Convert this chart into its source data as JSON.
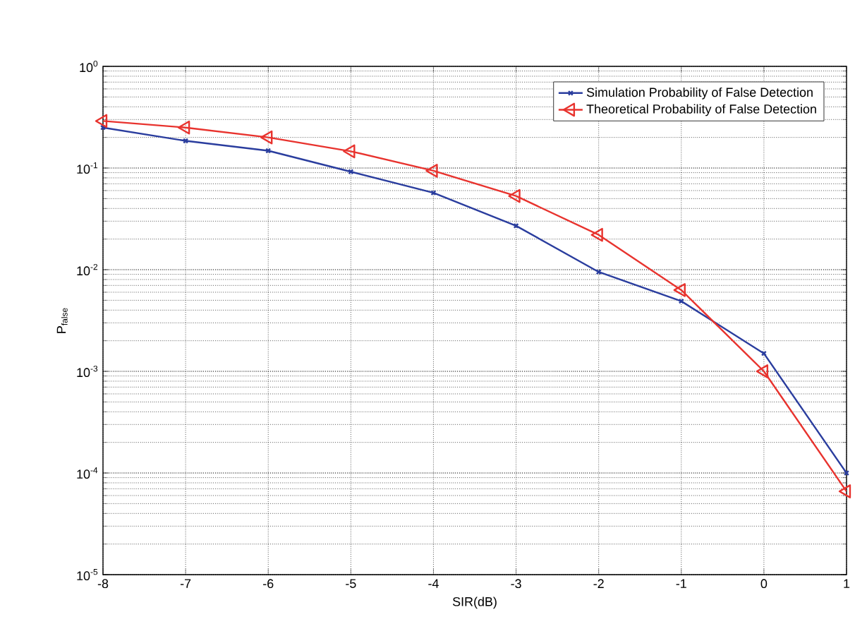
{
  "chart_data": {
    "type": "line",
    "xlabel": "SIR(dB)",
    "ylabel": "P$_{false}$",
    "x": [
      -8,
      -7,
      -6,
      -5,
      -4,
      -3,
      -2,
      -1,
      0,
      1
    ],
    "series": [
      {
        "name": "Simulation Probability of False Detection",
        "color": "#2a3d9e",
        "marker": "cross",
        "values": [
          0.25,
          0.185,
          0.148,
          0.092,
          0.057,
          0.027,
          0.0095,
          0.0049,
          0.0015,
          0.0001
        ]
      },
      {
        "name": "Theoretical Probability of False Detection",
        "color": "#e8332e",
        "marker": "triangle",
        "values": [
          0.29,
          0.25,
          0.2,
          0.146,
          0.094,
          0.053,
          0.022,
          0.0063,
          0.001,
          6.6e-05
        ]
      }
    ],
    "log": "y",
    "xlim": [
      -8,
      1
    ],
    "ylim": [
      1e-05,
      1
    ],
    "xticks": [
      -8,
      -7,
      -6,
      -5,
      -4,
      -3,
      -2,
      -1,
      0,
      1
    ],
    "yticks": [
      {
        "value": 1e-05,
        "label": "10$^{-5}$"
      },
      {
        "value": 0.0001,
        "label": "10$^{-4}$"
      },
      {
        "value": 0.001,
        "label": "10$^{-3}$"
      },
      {
        "value": 0.01,
        "label": "10$^{-2}$"
      },
      {
        "value": 0.1,
        "label": "10$^{-1}$"
      },
      {
        "value": 1,
        "label": "10$^{0}$"
      }
    ],
    "grid": true,
    "legend": "top right",
    "line_style": "solid"
  }
}
